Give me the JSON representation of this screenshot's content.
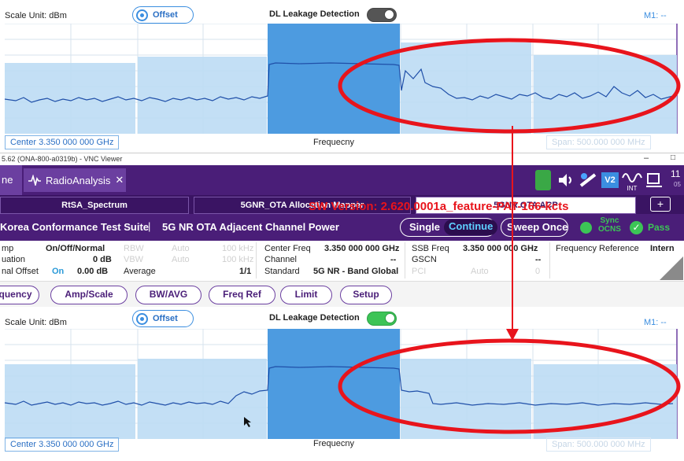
{
  "top_panel": {
    "scale_unit": "Scale Unit: dBm",
    "offset_label": "Offset",
    "dl_leakage_label": "DL Leakage Detection",
    "dl_leakage_on": false,
    "marker": "M1: --",
    "center": "Center  3.350 000 000 GHz",
    "freq_label": "Frequecny",
    "span": "Span:    500.000 000 MHz"
  },
  "vnc": {
    "title": "5.62 (ONA-800-a0319b) - VNC Viewer",
    "minimize": "–",
    "maximize": "□"
  },
  "app": {
    "home_label": "ne",
    "tab_label": "RadioAnalysis",
    "tab_close": "✕",
    "time": "11",
    "time_sub": "05",
    "int_label": "INT"
  },
  "tabs": {
    "items": [
      "RtSA_Spectrum",
      "5GNR_OTA Allocation Mapper",
      "5GNR OTA ACP"
    ],
    "close": "✕",
    "add": "+"
  },
  "overlay": {
    "version_text": "SW Version: 2.620.0001a_feature-PAT-166-kcts"
  },
  "suite": {
    "left": "Korea Conformance Test Suite",
    "separator": "|",
    "title": "5G NR OTA Adjacent Channel Power",
    "single": "Single",
    "continue": "Continue",
    "sweep_once": "Sweep Once",
    "sync": "Sync",
    "ocns": "OCNS",
    "pass": "Pass"
  },
  "info": {
    "col1": [
      {
        "label": "mp",
        "value": "On/Off/Normal"
      },
      {
        "label": "uation",
        "value": "0 dB"
      },
      {
        "label": "nal Offset",
        "on": "On",
        "value": "0.00 dB"
      }
    ],
    "col2": [
      {
        "label": "RBW",
        "mode": "Auto",
        "value": "100 kHz"
      },
      {
        "label": "VBW",
        "mode": "Auto",
        "value": "100 kHz"
      },
      {
        "label": "Average",
        "mode": "",
        "value": "1/1"
      }
    ],
    "col3": [
      {
        "label": "Center Freq",
        "value": "3.350 000 000 GHz"
      },
      {
        "label": "Channel",
        "value": "--"
      },
      {
        "label": "Standard",
        "value": "5G NR - Band Global"
      }
    ],
    "col4": [
      {
        "label": "SSB Freq",
        "value": "3.350 000 000 GHz"
      },
      {
        "label": "GSCN",
        "value": "--"
      },
      {
        "label": "PCI",
        "mode": "Auto",
        "value": "0"
      }
    ],
    "freq_ref_label": "Frequency Reference",
    "freq_ref_value": "Intern"
  },
  "menu": [
    "quency",
    "Amp/Scale",
    "BW/AVG",
    "Freq Ref",
    "Limit",
    "Setup"
  ],
  "bottom_panel": {
    "scale_unit": "Scale Unit: dBm",
    "offset_label": "Offset",
    "dl_leakage_label": "DL Leakage Detection",
    "dl_leakage_on": true,
    "marker": "M1: --",
    "center": "Center  3.350 000 000 GHz",
    "freq_label": "Frequecny",
    "span": "Span:    500.000 000 MHz"
  },
  "colors": {
    "purple": "#4a1e78",
    "annotation_red": "#e8141c",
    "channel_dark": "#4d9be0",
    "channel_light": "#bcdcf4",
    "trace": "#1f4fa8"
  }
}
